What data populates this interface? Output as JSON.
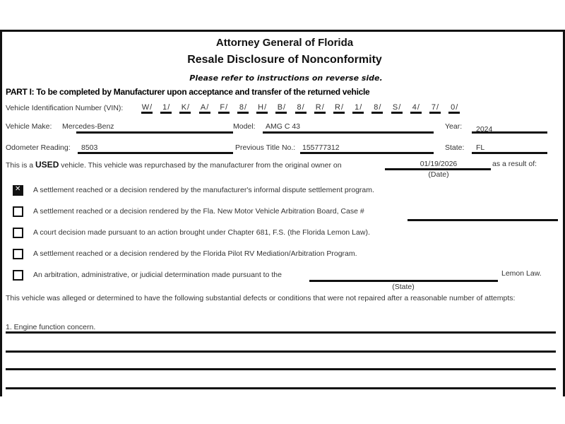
{
  "header": {
    "title": "Attorney General of Florida",
    "subtitle": "Resale Disclosure of Nonconformity",
    "instructions": "Please refer to instructions on reverse side."
  },
  "part1": {
    "heading": "PART I: To be completed by Manufacturer upon acceptance and transfer of the returned vehicle",
    "vin_label": "Vehicle Identification Number (VIN):",
    "vin": [
      "W",
      "1",
      "K",
      "A",
      "F",
      "8",
      "H",
      "B",
      "8",
      "R",
      "R",
      "1",
      "8",
      "S",
      "4",
      "7",
      "0"
    ],
    "make_label": "Vehicle Make:",
    "make": "Mercedes-Benz",
    "model_label": "Model:",
    "model": "AMG C 43",
    "year_label": "Year:",
    "year": "2024",
    "odometer_label": "Odometer Reading:",
    "odometer": "8503",
    "prev_title_label": "Previous Title No.:",
    "prev_title": "155777312",
    "state_label": "State:",
    "state": "FL",
    "used_prefix": "This is a ",
    "used_word": "USED",
    "used_suffix": " vehicle. This vehicle was repurchased by the manufacturer from the original owner on",
    "repurchase_date": "01/19/2026",
    "date_caption": "(Date)",
    "result_of": "as a result of:"
  },
  "options": [
    {
      "label": "A settlement reached or a decision rendered by the manufacturer's informal dispute settlement program.",
      "checked": true
    },
    {
      "label": "A settlement reached or a decision rendered by the Fla. New Motor Vehicle Arbitration Board, Case #",
      "checked": false
    },
    {
      "label": "A court decision made pursuant to an action brought under Chapter 681, F.S. (the Florida Lemon Law).",
      "checked": false
    },
    {
      "label": "A settlement reached or a decision rendered by the Florida Pilot RV Mediation/Arbitration Program.",
      "checked": false
    },
    {
      "label": "An arbitration, administrative, or judicial determination made pursuant to the",
      "checked": false
    }
  ],
  "lemon_law_suffix": "Lemon Law.",
  "state_caption": "(State)",
  "defects_intro": "This vehicle was alleged or determined to have the following substantial defects or conditions that were not repaired after a reasonable number of attempts:",
  "defects": [
    "1. Engine function concern.",
    "",
    "",
    ""
  ]
}
